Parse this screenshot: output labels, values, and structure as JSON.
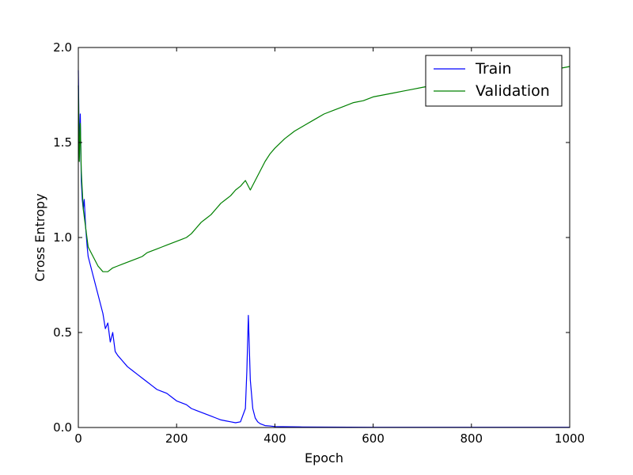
{
  "chart_data": {
    "type": "line",
    "title": "",
    "xlabel": "Epoch",
    "ylabel": "Cross Entropy",
    "xlim": [
      0,
      1000
    ],
    "ylim": [
      0.0,
      2.0
    ],
    "xticks": [
      0,
      200,
      400,
      600,
      800,
      1000
    ],
    "xtick_labels": [
      "0",
      "200",
      "400",
      "600",
      "800",
      "1000"
    ],
    "yticks": [
      0.0,
      0.5,
      1.0,
      1.5,
      2.0
    ],
    "ytick_labels": [
      "0.0",
      "0.5",
      "1.0",
      "1.5",
      "2.0"
    ],
    "grid": false,
    "legend_position": "top-right",
    "series": [
      {
        "name": "Train",
        "color": "#0000ff",
        "x": [
          0,
          2,
          4,
          6,
          8,
          10,
          12,
          15,
          18,
          20,
          25,
          30,
          35,
          40,
          45,
          50,
          55,
          60,
          65,
          70,
          75,
          80,
          90,
          100,
          110,
          120,
          130,
          140,
          150,
          160,
          170,
          180,
          190,
          200,
          210,
          220,
          230,
          240,
          250,
          260,
          270,
          280,
          290,
          300,
          310,
          320,
          330,
          340,
          343,
          346,
          350,
          355,
          360,
          365,
          370,
          380,
          390,
          400,
          450,
          500,
          600,
          700,
          800,
          900,
          1000
        ],
        "y": [
          1.88,
          1.45,
          1.65,
          1.3,
          1.2,
          1.15,
          1.2,
          1.05,
          0.95,
          0.9,
          0.85,
          0.8,
          0.75,
          0.7,
          0.65,
          0.6,
          0.52,
          0.55,
          0.45,
          0.5,
          0.4,
          0.38,
          0.35,
          0.32,
          0.3,
          0.28,
          0.26,
          0.24,
          0.22,
          0.2,
          0.19,
          0.18,
          0.16,
          0.14,
          0.13,
          0.12,
          0.1,
          0.09,
          0.08,
          0.07,
          0.06,
          0.05,
          0.04,
          0.035,
          0.03,
          0.025,
          0.03,
          0.1,
          0.3,
          0.59,
          0.25,
          0.1,
          0.05,
          0.03,
          0.02,
          0.01,
          0.008,
          0.005,
          0.003,
          0.002,
          0.001,
          0.001,
          0.001,
          0.001,
          0.001
        ]
      },
      {
        "name": "Validation",
        "color": "#008000",
        "x": [
          0,
          2,
          4,
          6,
          8,
          10,
          15,
          20,
          30,
          40,
          50,
          60,
          70,
          80,
          90,
          100,
          110,
          120,
          130,
          140,
          150,
          160,
          170,
          180,
          190,
          200,
          210,
          220,
          230,
          240,
          250,
          260,
          270,
          280,
          290,
          300,
          310,
          320,
          330,
          340,
          350,
          360,
          370,
          380,
          390,
          400,
          420,
          440,
          460,
          480,
          500,
          520,
          540,
          560,
          580,
          600,
          620,
          640,
          660,
          680,
          700,
          720,
          740,
          760,
          780,
          800,
          820,
          840,
          860,
          880,
          900,
          920,
          940,
          960,
          980,
          1000
        ],
        "y": [
          1.8,
          1.4,
          1.6,
          1.35,
          1.25,
          1.15,
          1.05,
          0.95,
          0.9,
          0.85,
          0.82,
          0.82,
          0.84,
          0.85,
          0.86,
          0.87,
          0.88,
          0.89,
          0.9,
          0.92,
          0.93,
          0.94,
          0.95,
          0.96,
          0.97,
          0.98,
          0.99,
          1.0,
          1.02,
          1.05,
          1.08,
          1.1,
          1.12,
          1.15,
          1.18,
          1.2,
          1.22,
          1.25,
          1.27,
          1.3,
          1.25,
          1.3,
          1.35,
          1.4,
          1.44,
          1.47,
          1.52,
          1.56,
          1.59,
          1.62,
          1.65,
          1.67,
          1.69,
          1.71,
          1.72,
          1.74,
          1.75,
          1.76,
          1.77,
          1.78,
          1.79,
          1.8,
          1.81,
          1.82,
          1.83,
          1.84,
          1.85,
          1.86,
          1.86,
          1.87,
          1.87,
          1.88,
          1.88,
          1.89,
          1.89,
          1.9
        ]
      }
    ]
  }
}
